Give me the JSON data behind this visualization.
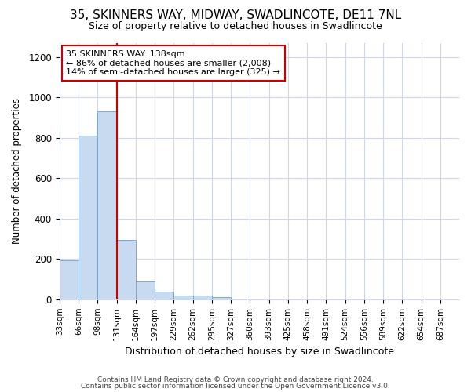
{
  "title_line1": "35, SKINNERS WAY, MIDWAY, SWADLINCOTE, DE11 7NL",
  "title_line2": "Size of property relative to detached houses in Swadlincote",
  "xlabel": "Distribution of detached houses by size in Swadlincote",
  "ylabel": "Number of detached properties",
  "bar_labels": [
    "33sqm",
    "66sqm",
    "98sqm",
    "131sqm",
    "164sqm",
    "197sqm",
    "229sqm",
    "262sqm",
    "295sqm",
    "327sqm",
    "360sqm",
    "393sqm",
    "425sqm",
    "458sqm",
    "491sqm",
    "524sqm",
    "556sqm",
    "589sqm",
    "622sqm",
    "654sqm",
    "687sqm"
  ],
  "bar_values": [
    193,
    810,
    930,
    295,
    88,
    38,
    20,
    17,
    12,
    0,
    0,
    0,
    0,
    0,
    0,
    0,
    0,
    0,
    0,
    0,
    0
  ],
  "bar_color": "#c8daf0",
  "bar_edge_color": "#7aaad4",
  "annotation_line1": "35 SKINNERS WAY: 138sqm",
  "annotation_line2": "← 86% of detached houses are smaller (2,008)",
  "annotation_line3": "14% of semi-detached houses are larger (325) →",
  "annotation_box_color": "#ffffff",
  "annotation_box_edge": "#cc0000",
  "vline_color": "#cc0000",
  "vline_x_bin": 3,
  "ylim": [
    0,
    1270
  ],
  "yticks": [
    0,
    200,
    400,
    600,
    800,
    1000,
    1200
  ],
  "footer_line1": "Contains HM Land Registry data © Crown copyright and database right 2024.",
  "footer_line2": "Contains public sector information licensed under the Open Government Licence v3.0.",
  "bg_color": "#ffffff",
  "plot_bg_color": "#ffffff",
  "grid_color": "#d0d8e8"
}
